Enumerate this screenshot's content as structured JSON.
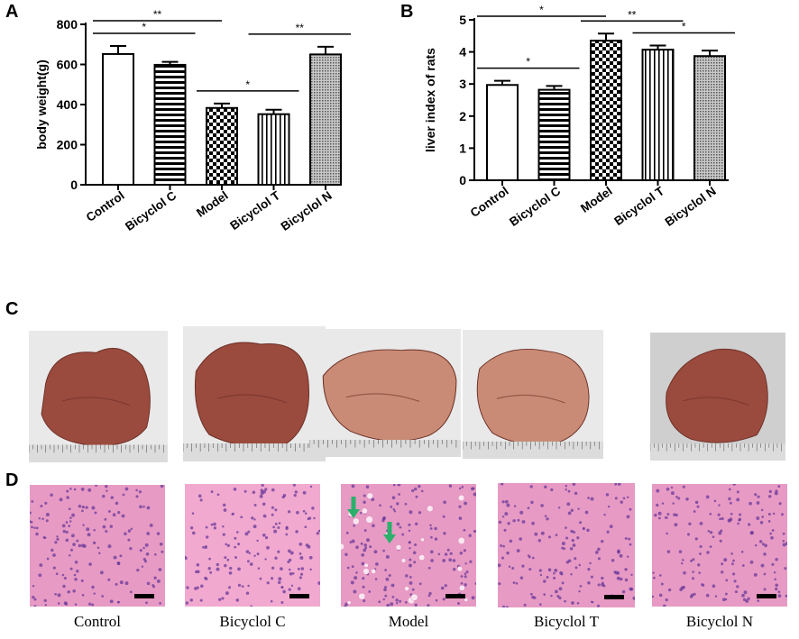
{
  "panels": {
    "a": "A",
    "b": "B",
    "c": "C",
    "d": "D"
  },
  "chart_data": [
    {
      "type": "bar",
      "id": "body-weight",
      "title": "",
      "ylabel": "body weight(g)",
      "categories": [
        "Control",
        "Bicyclol C",
        "Model",
        "Bicyclol T",
        "Bicyclol N"
      ],
      "values": [
        652,
        598,
        383,
        352,
        650
      ],
      "errors": [
        40,
        15,
        22,
        22,
        38
      ],
      "patterns": [
        "white",
        "hlines",
        "checker",
        "vlines",
        "dots"
      ],
      "ylim": [
        0,
        800
      ],
      "yticks": [
        0,
        200,
        400,
        600,
        800
      ],
      "significance": [
        {
          "from": 0,
          "to": 1,
          "label": "*"
        },
        {
          "from": 0,
          "to": 2,
          "label": "**"
        },
        {
          "from": 2,
          "to": 3,
          "label": "*"
        },
        {
          "from": 3,
          "to": 4,
          "label": "**"
        }
      ]
    },
    {
      "type": "bar",
      "id": "liver-index",
      "title": "",
      "ylabel": "liver index of rats",
      "categories": [
        "Control",
        "Bicyclol C",
        "Model",
        "Bicyclol T",
        "Bicyclol N"
      ],
      "values": [
        2.97,
        2.82,
        4.35,
        4.07,
        3.87
      ],
      "errors": [
        0.13,
        0.12,
        0.22,
        0.13,
        0.17
      ],
      "patterns": [
        "white",
        "hlines",
        "checker",
        "vlines",
        "dots"
      ],
      "ylim": [
        0,
        5
      ],
      "yticks": [
        0,
        1,
        2,
        3,
        4,
        5
      ],
      "significance": [
        {
          "from": 0,
          "to": 1,
          "label": "*"
        },
        {
          "from": 0,
          "to": 2,
          "label": "*"
        },
        {
          "from": 2,
          "to": 3,
          "label": "**"
        },
        {
          "from": 3,
          "to": 4,
          "label": "*"
        }
      ]
    }
  ],
  "gross_photos": [
    "Control",
    "Bicyclol C",
    "Model",
    "Bicyclol T",
    "Bicyclol N"
  ],
  "histology": {
    "labels": [
      "Control",
      "Bicyclol C",
      "Model",
      "Bicyclol T",
      "Bicyclol N"
    ]
  },
  "colors": {
    "liver": "#9b4a3e",
    "liver_pale": "#c98b75",
    "stain_bg": "#e79ac4",
    "arrow": "#2bb06b"
  }
}
